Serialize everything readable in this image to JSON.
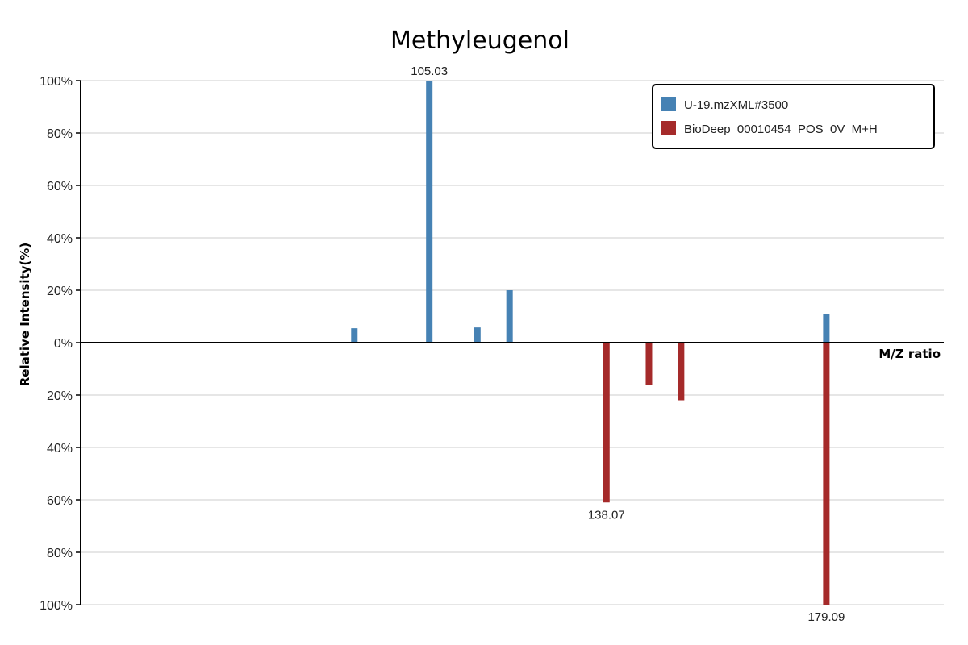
{
  "chart_data": {
    "type": "bar",
    "title": "Methyleugenol",
    "xlabel": "M/Z ratio",
    "ylabel": "Relative Intensity(%)",
    "ylim": [
      -100,
      100
    ],
    "y_ticks": [
      100,
      80,
      60,
      40,
      20,
      0,
      -20,
      -40,
      -60,
      -80,
      -100
    ],
    "y_tick_labels": [
      "100%",
      "80%",
      "60%",
      "40%",
      "20%",
      "0%",
      "20%",
      "40%",
      "60%",
      "80%",
      "100%"
    ],
    "xlim": [
      40,
      201
    ],
    "grid": true,
    "legend_position": "top-right",
    "series": [
      {
        "name": "U-19.mzXML#3500",
        "color": "#4682b4",
        "direction": "up",
        "peaks": [
          {
            "mz": 91.05,
            "intensity": 5.5
          },
          {
            "mz": 105.03,
            "intensity": 100,
            "label": "105.03"
          },
          {
            "mz": 114.0,
            "intensity": 5.8
          },
          {
            "mz": 120.0,
            "intensity": 20
          },
          {
            "mz": 179.09,
            "intensity": 10.8
          }
        ]
      },
      {
        "name": "BioDeep_00010454_POS_0V_M+H",
        "color": "#a52a2a",
        "direction": "down",
        "peaks": [
          {
            "mz": 138.07,
            "intensity": 61,
            "label": "138.07"
          },
          {
            "mz": 146.0,
            "intensity": 16
          },
          {
            "mz": 152.0,
            "intensity": 22
          },
          {
            "mz": 179.09,
            "intensity": 100,
            "label": "179.09"
          }
        ]
      }
    ]
  }
}
